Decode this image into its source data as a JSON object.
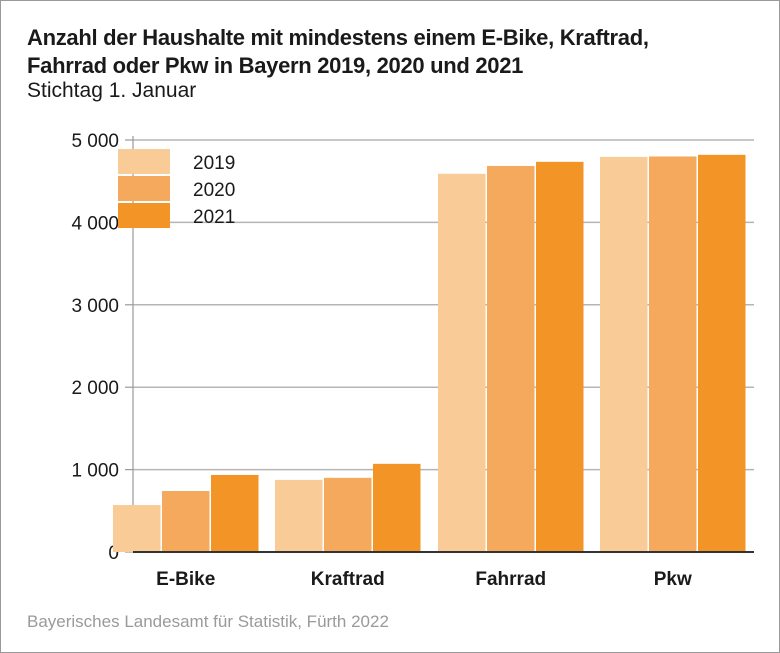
{
  "chart_data": {
    "type": "bar",
    "title": "Anzahl der Haushalte mit mindestens einem E-Bike, Kraftrad, Fahrrad oder Pkw in Bayern 2019, 2020 und 2021",
    "title_lines": [
      "Anzahl der Haushalte mit mindestens einem E-Bike, Kraftrad,",
      "Fahrrad oder Pkw in Bayern 2019, 2020 und 2021"
    ],
    "subtitle": "Stichtag 1. Januar",
    "xlabel": "",
    "ylabel": "",
    "categories": [
      "E-Bike",
      "Kraftrad",
      "Fahrrad",
      "Pkw"
    ],
    "series": [
      {
        "name": "2019",
        "color": "#f9cb97",
        "values": [
          570,
          875,
          4590,
          4795
        ]
      },
      {
        "name": "2020",
        "color": "#f4a95c",
        "values": [
          740,
          900,
          4685,
          4800
        ]
      },
      {
        "name": "2021",
        "color": "#f29426",
        "values": [
          935,
          1070,
          4735,
          4820
        ]
      }
    ],
    "ylim": [
      0,
      5000
    ],
    "yticks": [
      0,
      1000,
      2000,
      3000,
      4000,
      5000
    ],
    "ytick_labels": [
      "0",
      "1 000",
      "2 000",
      "3 000",
      "4 000",
      "5 000"
    ],
    "grid": true,
    "legend_position": "top-left",
    "source": "Bayerisches Landesamt für Statistik, Fürth 2022"
  }
}
